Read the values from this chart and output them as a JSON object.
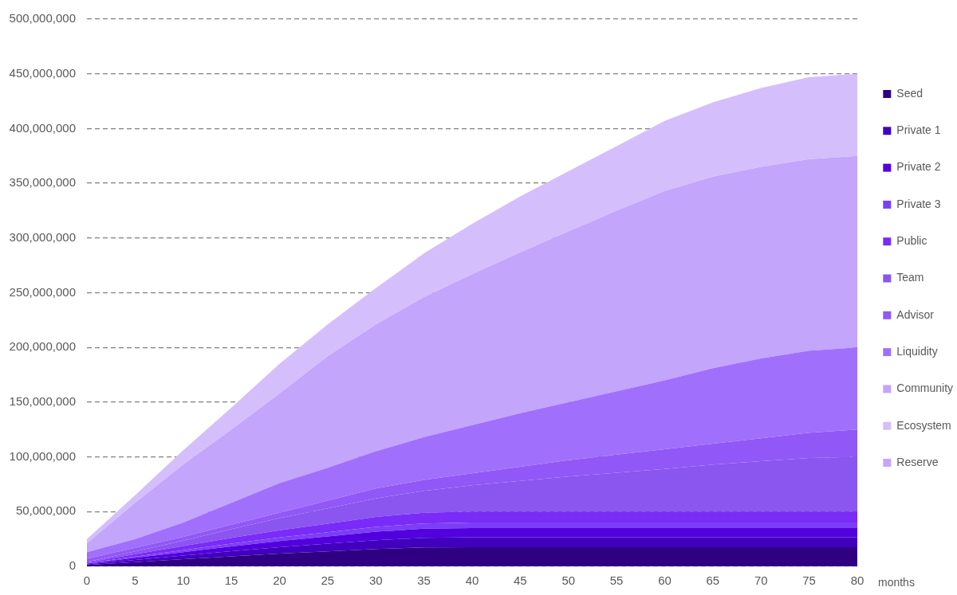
{
  "chart_data": {
    "type": "area",
    "stacked": true,
    "x": [
      0,
      5,
      10,
      15,
      20,
      25,
      30,
      35,
      40,
      45,
      50,
      55,
      60,
      65,
      70,
      75,
      80
    ],
    "xlim": [
      0,
      80
    ],
    "xticks": [
      0,
      5,
      10,
      15,
      20,
      25,
      30,
      35,
      40,
      45,
      50,
      55,
      60,
      65,
      70,
      75,
      80
    ],
    "xlabel": "months",
    "ylim": [
      0,
      500000000
    ],
    "yticks": [
      {
        "value": 0,
        "label": "0"
      },
      {
        "value": 50000000,
        "label": "50,000,000"
      },
      {
        "value": 100000000,
        "label": "100,000,000"
      },
      {
        "value": 150000000,
        "label": "150,000,000"
      },
      {
        "value": 200000000,
        "label": "200,000,000"
      },
      {
        "value": 250000000,
        "label": "250,000,000"
      },
      {
        "value": 300000000,
        "label": "300,000,000"
      },
      {
        "value": 350000000,
        "label": "350,000,000"
      },
      {
        "value": 400000000,
        "label": "400,000,000"
      },
      {
        "value": 450000000,
        "label": "450,000,000"
      },
      {
        "value": 500000000,
        "label": "500,000,000"
      }
    ],
    "grid": "y",
    "legend": "right",
    "marker": "none",
    "line_style": "dashed",
    "series": [
      {
        "name": "Seed",
        "color": "#2f0082",
        "values": [
          1200000,
          3900000,
          6500000,
          9100000,
          11600000,
          13700000,
          15800000,
          17200000,
          17500000,
          17500000,
          17500000,
          17500000,
          17500000,
          17500000,
          17500000,
          17500000,
          17500000
        ]
      },
      {
        "name": "Private 1",
        "color": "#4100bd",
        "values": [
          600000,
          2000000,
          3300000,
          4700000,
          5900000,
          7000000,
          8100000,
          8800000,
          9000000,
          9000000,
          9000000,
          9000000,
          9000000,
          9000000,
          9000000,
          9000000,
          9000000
        ]
      },
      {
        "name": "Private 2",
        "color": "#5200de",
        "values": [
          600000,
          1900000,
          3100000,
          4400000,
          5600000,
          6600000,
          7700000,
          8300000,
          8500000,
          8500000,
          8500000,
          8500000,
          8500000,
          8500000,
          8500000,
          8500000,
          8500000
        ]
      },
      {
        "name": "Private 3",
        "color": "#7c3ef5",
        "values": [
          400000,
          1100000,
          1900000,
          2600000,
          3300000,
          3900000,
          4500000,
          4900000,
          5000000,
          5000000,
          5000000,
          5000000,
          5000000,
          5000000,
          5000000,
          5000000,
          5000000
        ]
      },
      {
        "name": "Public",
        "color": "#7a2bf8",
        "values": [
          700000,
          2200000,
          3700000,
          5200000,
          6600000,
          7800000,
          9000000,
          9800000,
          10000000,
          10000000,
          10000000,
          10000000,
          10000000,
          10000000,
          10000000,
          10000000,
          10000000
        ]
      },
      {
        "name": "Team",
        "color": "#8b55f0",
        "values": [
          500000,
          2500000,
          5000000,
          8000000,
          11000000,
          14000000,
          17000000,
          20000000,
          24000000,
          28000000,
          32000000,
          35500000,
          39000000,
          43000000,
          46000000,
          49000000,
          50000000
        ]
      },
      {
        "name": "Advisor",
        "color": "#9257f7",
        "values": [
          3000000,
          3400000,
          3500000,
          4000000,
          5000000,
          7000000,
          9000000,
          10000000,
          11000000,
          13000000,
          15000000,
          16500000,
          18000000,
          19000000,
          21000000,
          23000000,
          25000000
        ]
      },
      {
        "name": "Liquidity",
        "color": "#a070fc",
        "values": [
          6000000,
          8000000,
          13000000,
          20000000,
          27000000,
          30000000,
          34000000,
          39000000,
          44000000,
          49000000,
          53000000,
          58000000,
          63000000,
          69000000,
          73000000,
          75000000,
          75000000
        ]
      },
      {
        "name": "Community",
        "color": "#c3a5fb",
        "values": [
          8000000,
          33000000,
          53000000,
          67000000,
          82000000,
          102000000,
          116000000,
          128000000,
          138000000,
          147000000,
          156000000,
          165000000,
          173000000,
          175000000,
          175000000,
          175000000,
          175000000
        ]
      },
      {
        "name": "Ecosystem",
        "color": "#d4bffc",
        "values": [
          4000000,
          7000000,
          13000000,
          20000000,
          27000000,
          29000000,
          33000000,
          40000000,
          46000000,
          51000000,
          55000000,
          59000000,
          64000000,
          68000000,
          72000000,
          75000000,
          75000000
        ]
      },
      {
        "name": "Reserve",
        "color": "#c3a6fb",
        "values": [
          null,
          null,
          null,
          null,
          null,
          null,
          null,
          null,
          null,
          null,
          null,
          null,
          null,
          null,
          null,
          null,
          null
        ]
      }
    ]
  }
}
